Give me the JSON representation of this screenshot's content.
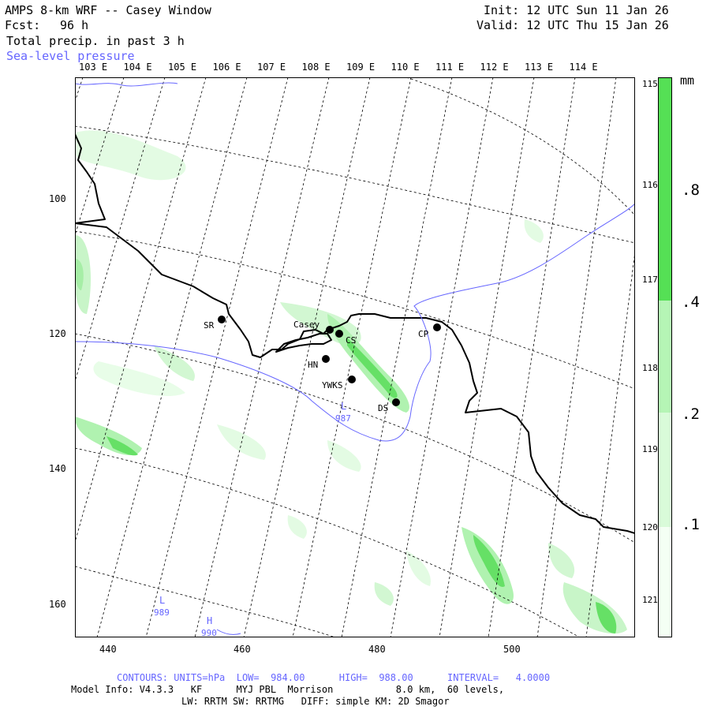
{
  "header": {
    "title": "AMPS 8-km WRF -- Casey Window",
    "forecast_label": "Fcst:",
    "forecast_hours": "96 h",
    "field": "Total precip. in past 3 h",
    "overlay": "Sea-level pressure",
    "init": "Init: 12 UTC Sun 11 Jan 26",
    "valid": "Valid: 12 UTC Thu 15 Jan 26"
  },
  "longitude_labels": [
    "103 E",
    "104 E",
    "105 E",
    "106 E",
    "107 E",
    "108 E",
    "109 E",
    "110 E",
    "111 E",
    "112 E",
    "113 E",
    "114 E"
  ],
  "latitude_labels": [
    "115 E",
    "116 E",
    "117 E",
    "118 E",
    "119 E",
    "120 E",
    "121 E"
  ],
  "x_ticks": [
    "440",
    "460",
    "480",
    "500"
  ],
  "y_ticks": [
    "100",
    "120",
    "140",
    "160"
  ],
  "colorbar": {
    "unit": "mm",
    "levels": [
      ".1",
      ".2",
      ".4",
      ".8"
    ],
    "colors": [
      "#f4fff4",
      "#d9fbd9",
      "#b5f5b5",
      "#55e055"
    ]
  },
  "stations": [
    {
      "id": "SR",
      "label": "SR"
    },
    {
      "id": "casey",
      "label": "Casey"
    },
    {
      "id": "CS",
      "label": "CS"
    },
    {
      "id": "HN",
      "label": "HN"
    },
    {
      "id": "YWKS",
      "label": "YWKS"
    },
    {
      "id": "DS",
      "label": "DS"
    },
    {
      "id": "CP",
      "label": "CP"
    }
  ],
  "pressure_centers": [
    {
      "type": "L",
      "value": "987"
    },
    {
      "type": "L",
      "value": "989"
    },
    {
      "type": "H",
      "value": "990"
    }
  ],
  "footer": {
    "contours": "CONTOURS: UNITS=hPa  LOW=  984.00      HIGH=  988.00      INTERVAL=   4.0000",
    "model_info": "Model Info: V4.3.3   KF      MYJ PBL  Morrison           8.0 km,  60 levels,",
    "physics": "LW: RRTM SW: RRTMG   DIFF: simple KM: 2D Smagor"
  },
  "colors": {
    "contour_blue": "#6666ff",
    "coast": "#000000"
  }
}
